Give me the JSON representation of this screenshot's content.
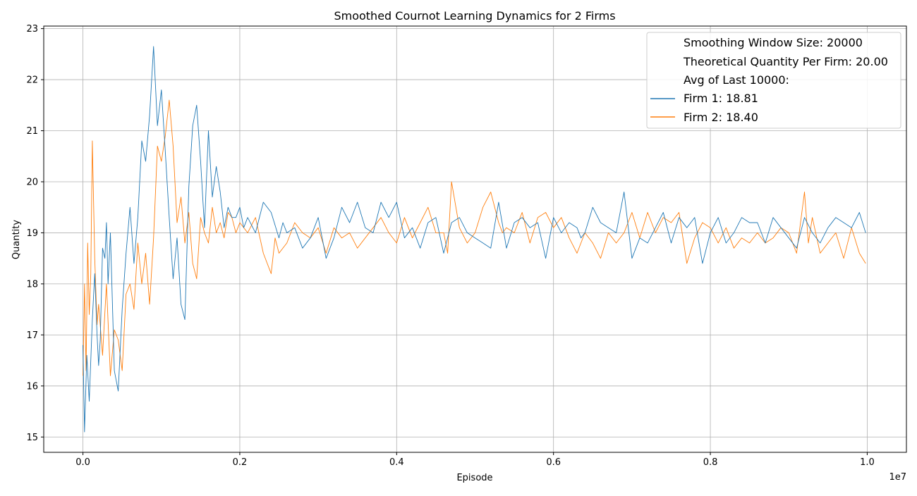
{
  "chart_data": {
    "type": "line",
    "title": "Smoothed Cournot Learning Dynamics for 2 Firms",
    "xlabel": "Episode",
    "ylabel": "Quantity",
    "x_offset_label": "1e7",
    "xlim": [
      -0.05,
      1.05
    ],
    "ylim": [
      14.7,
      23.05
    ],
    "x_ticks": [
      0.0,
      0.2,
      0.4,
      0.6,
      0.8,
      1.0
    ],
    "x_tick_labels": [
      "0.0",
      "0.2",
      "0.4",
      "0.6",
      "0.8",
      "1.0"
    ],
    "y_ticks": [
      15,
      16,
      17,
      18,
      19,
      20,
      21,
      22,
      23
    ],
    "y_tick_labels": [
      "15",
      "16",
      "17",
      "18",
      "19",
      "20",
      "21",
      "22",
      "23"
    ],
    "grid": true,
    "legend_position": "upper-right",
    "legend": {
      "text_entries": [
        "Smoothing Window Size: 20000",
        "Theoretical Quantity Per Firm: 20.00",
        "Avg of Last 10000:"
      ],
      "series_entries": [
        "Firm 1: 18.81",
        "Firm 2: 18.40"
      ]
    },
    "series": [
      {
        "name": "Firm 1: 18.81",
        "color": "#1f77b4",
        "x": [
          0.0,
          0.002,
          0.005,
          0.008,
          0.01,
          0.012,
          0.015,
          0.018,
          0.02,
          0.022,
          0.025,
          0.028,
          0.03,
          0.032,
          0.035,
          0.04,
          0.045,
          0.05,
          0.055,
          0.06,
          0.065,
          0.07,
          0.075,
          0.08,
          0.085,
          0.09,
          0.095,
          0.1,
          0.105,
          0.11,
          0.115,
          0.12,
          0.125,
          0.13,
          0.135,
          0.14,
          0.145,
          0.15,
          0.155,
          0.16,
          0.165,
          0.17,
          0.175,
          0.18,
          0.185,
          0.19,
          0.195,
          0.2,
          0.205,
          0.21,
          0.22,
          0.23,
          0.24,
          0.25,
          0.255,
          0.26,
          0.27,
          0.28,
          0.29,
          0.3,
          0.31,
          0.32,
          0.33,
          0.34,
          0.35,
          0.36,
          0.37,
          0.38,
          0.39,
          0.4,
          0.41,
          0.42,
          0.43,
          0.44,
          0.45,
          0.46,
          0.47,
          0.48,
          0.49,
          0.5,
          0.51,
          0.52,
          0.53,
          0.54,
          0.55,
          0.56,
          0.57,
          0.58,
          0.59,
          0.6,
          0.61,
          0.62,
          0.63,
          0.635,
          0.64,
          0.65,
          0.66,
          0.67,
          0.68,
          0.69,
          0.7,
          0.71,
          0.72,
          0.73,
          0.74,
          0.75,
          0.76,
          0.77,
          0.775,
          0.78,
          0.79,
          0.8,
          0.81,
          0.82,
          0.83,
          0.84,
          0.85,
          0.86,
          0.87,
          0.88,
          0.89,
          0.9,
          0.91,
          0.92,
          0.93,
          0.94,
          0.95,
          0.96,
          0.97,
          0.98,
          0.99,
          0.998
        ],
        "y": [
          16.8,
          15.1,
          16.6,
          15.7,
          16.5,
          17.3,
          18.2,
          17.0,
          16.4,
          16.9,
          18.7,
          18.5,
          19.2,
          18.0,
          19.0,
          16.3,
          15.9,
          17.5,
          18.6,
          19.5,
          18.4,
          19.3,
          20.8,
          20.4,
          21.3,
          22.65,
          21.1,
          21.8,
          20.6,
          19.3,
          18.1,
          18.9,
          17.6,
          17.3,
          19.9,
          21.1,
          21.5,
          20.4,
          19.1,
          21.0,
          19.7,
          20.3,
          19.8,
          19.1,
          19.5,
          19.3,
          19.3,
          19.5,
          19.1,
          19.3,
          19.0,
          19.6,
          19.4,
          18.9,
          19.2,
          19.0,
          19.1,
          18.7,
          18.9,
          19.3,
          18.5,
          18.9,
          19.5,
          19.2,
          19.6,
          19.1,
          19.0,
          19.6,
          19.3,
          19.6,
          18.9,
          19.1,
          18.7,
          19.2,
          19.3,
          18.6,
          19.2,
          19.3,
          19.0,
          18.9,
          18.8,
          18.7,
          19.6,
          18.7,
          19.2,
          19.3,
          19.1,
          19.2,
          18.5,
          19.3,
          19.0,
          19.2,
          19.1,
          18.9,
          19.0,
          19.5,
          19.2,
          19.1,
          19.0,
          19.8,
          18.5,
          18.9,
          18.8,
          19.1,
          19.4,
          18.8,
          19.3,
          19.1,
          19.2,
          19.3,
          18.4,
          19.0,
          19.3,
          18.8,
          19.0,
          19.3,
          19.2,
          19.2,
          18.8,
          19.3,
          19.1,
          18.9,
          18.7,
          19.3,
          19.0,
          18.8,
          19.1,
          19.3,
          19.2,
          19.1,
          19.4,
          19.0
        ]
      },
      {
        "name": "Firm 2: 18.40",
        "color": "#ff7f0e",
        "x": [
          0.0,
          0.002,
          0.004,
          0.006,
          0.008,
          0.01,
          0.012,
          0.015,
          0.018,
          0.02,
          0.025,
          0.03,
          0.035,
          0.04,
          0.045,
          0.05,
          0.055,
          0.06,
          0.065,
          0.07,
          0.075,
          0.08,
          0.085,
          0.09,
          0.095,
          0.1,
          0.105,
          0.11,
          0.115,
          0.12,
          0.125,
          0.13,
          0.135,
          0.14,
          0.145,
          0.15,
          0.155,
          0.16,
          0.165,
          0.17,
          0.175,
          0.18,
          0.185,
          0.19,
          0.195,
          0.2,
          0.21,
          0.22,
          0.23,
          0.24,
          0.245,
          0.25,
          0.26,
          0.27,
          0.28,
          0.29,
          0.3,
          0.31,
          0.32,
          0.33,
          0.34,
          0.35,
          0.36,
          0.37,
          0.38,
          0.39,
          0.4,
          0.41,
          0.42,
          0.43,
          0.44,
          0.45,
          0.46,
          0.465,
          0.47,
          0.48,
          0.49,
          0.5,
          0.51,
          0.52,
          0.53,
          0.535,
          0.54,
          0.55,
          0.56,
          0.57,
          0.58,
          0.59,
          0.6,
          0.61,
          0.62,
          0.63,
          0.64,
          0.65,
          0.66,
          0.67,
          0.68,
          0.69,
          0.7,
          0.71,
          0.72,
          0.73,
          0.74,
          0.75,
          0.76,
          0.77,
          0.78,
          0.79,
          0.8,
          0.81,
          0.82,
          0.83,
          0.84,
          0.85,
          0.86,
          0.87,
          0.88,
          0.89,
          0.9,
          0.91,
          0.92,
          0.925,
          0.93,
          0.94,
          0.95,
          0.96,
          0.97,
          0.98,
          0.99,
          0.998
        ],
        "y": [
          16.2,
          18.0,
          16.3,
          18.8,
          17.4,
          18.2,
          20.8,
          18.5,
          17.2,
          17.6,
          16.6,
          18.0,
          16.2,
          17.1,
          16.9,
          16.3,
          17.8,
          18.0,
          17.5,
          18.8,
          18.0,
          18.6,
          17.6,
          18.9,
          20.7,
          20.4,
          20.9,
          21.6,
          20.7,
          19.2,
          19.7,
          18.8,
          19.4,
          18.4,
          18.1,
          19.3,
          19.0,
          18.8,
          19.5,
          19.0,
          19.2,
          18.9,
          19.4,
          19.3,
          19.0,
          19.2,
          19.0,
          19.3,
          18.6,
          18.2,
          18.9,
          18.6,
          18.8,
          19.2,
          19.0,
          18.9,
          19.1,
          18.6,
          19.1,
          18.9,
          19.0,
          18.7,
          18.9,
          19.1,
          19.3,
          19.0,
          18.8,
          19.3,
          18.9,
          19.2,
          19.5,
          19.0,
          19.0,
          18.6,
          20.0,
          19.1,
          18.8,
          19.0,
          19.5,
          19.8,
          19.2,
          19.0,
          19.1,
          19.0,
          19.4,
          18.8,
          19.3,
          19.4,
          19.1,
          19.3,
          18.9,
          18.6,
          19.0,
          18.8,
          18.5,
          19.0,
          18.8,
          19.0,
          19.4,
          18.9,
          19.4,
          19.0,
          19.3,
          19.2,
          19.4,
          18.4,
          18.9,
          19.2,
          19.1,
          18.8,
          19.1,
          18.7,
          18.9,
          18.8,
          19.0,
          18.8,
          18.9,
          19.1,
          19.0,
          18.6,
          19.8,
          18.8,
          19.3,
          18.6,
          18.8,
          19.0,
          18.5,
          19.1,
          18.6,
          18.4
        ]
      }
    ]
  }
}
